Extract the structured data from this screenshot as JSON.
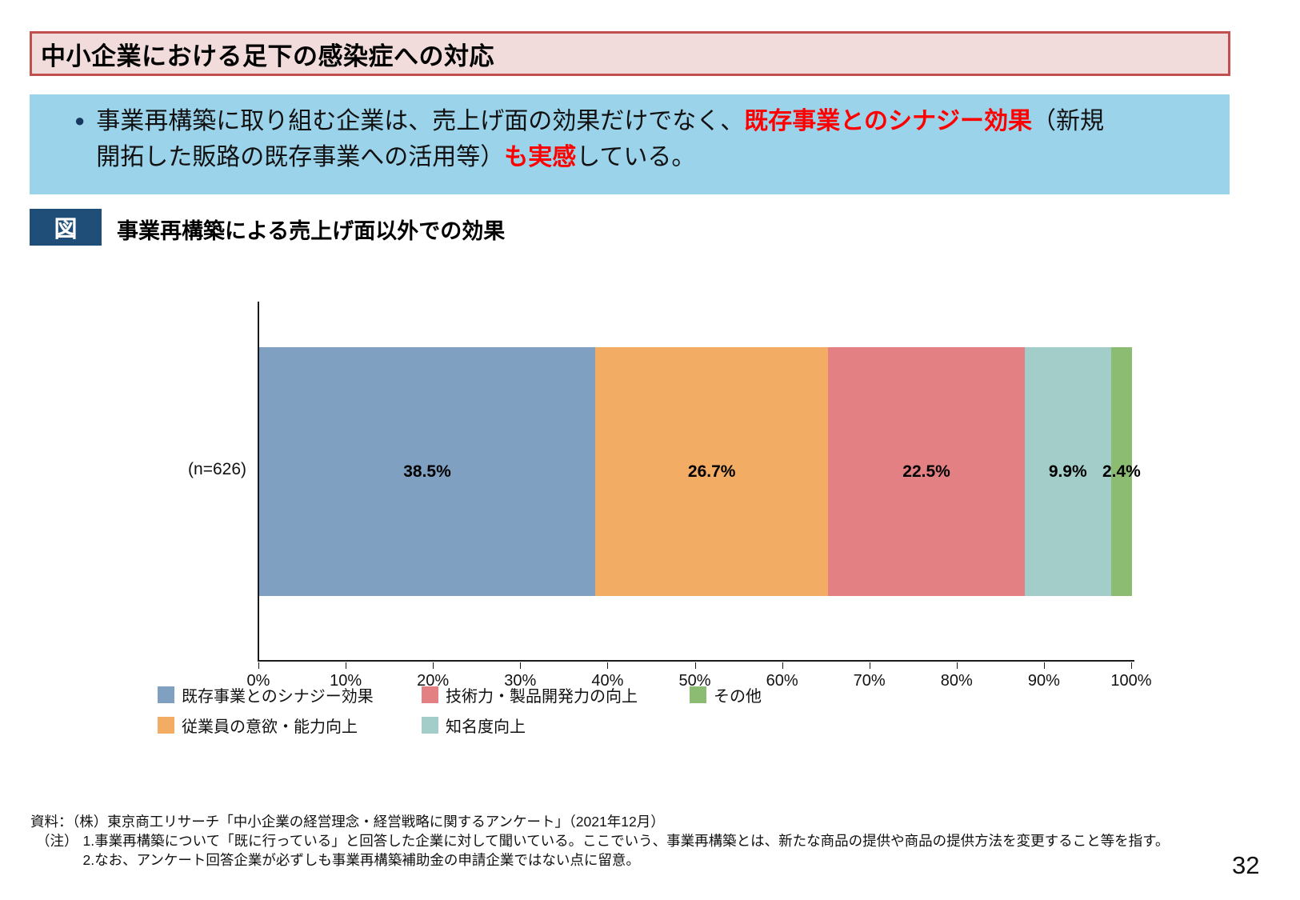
{
  "page": {
    "title": "中小企業における足下の感染症への対応",
    "number": "32"
  },
  "colors": {
    "title_bar_bg": "#F2DCDB",
    "title_bar_border": "#C0504D",
    "summary_box_bg": "#9BD3EA",
    "highlight_red": "#FF0000",
    "figure_badge_bg": "#1F4E79",
    "bullet": "#17375E"
  },
  "summary": {
    "bullet": "●",
    "line1_seg1": "事業再構築に取り組む企業は、売上げ面の効果だけでなく、",
    "line1_seg2_red": "既存事業とのシナジー効果",
    "line1_seg3": "（新規",
    "line2_seg1": "開拓した販路の既存事業への活用等）",
    "line2_seg2_red": "も実感",
    "line2_seg3": "している。"
  },
  "figure": {
    "badge": "図",
    "title": "事業再構築による売上げ面以外での効果"
  },
  "chart_data": {
    "type": "bar",
    "orientation": "horizontal",
    "stacked": true,
    "title": "事業再構築による売上げ面以外での効果",
    "categories": [
      "(n=626)"
    ],
    "n_label": "(n=626)",
    "series": [
      {
        "name": "既存事業とのシナジー効果",
        "values": [
          38.5
        ],
        "label": "38.5%",
        "color": "#7FA0C1"
      },
      {
        "name": "従業員の意欲・能力向上",
        "values": [
          26.7
        ],
        "label": "26.7%",
        "color": "#F2AC64"
      },
      {
        "name": "技術力・製品開発力の向上",
        "values": [
          22.5
        ],
        "label": "22.5%",
        "color": "#E28083"
      },
      {
        "name": "知名度向上",
        "values": [
          9.9
        ],
        "label": "9.9%",
        "color": "#A2CDC9"
      },
      {
        "name": "その他",
        "values": [
          2.4
        ],
        "label": "2.4%",
        "color": "#8CBB72"
      }
    ],
    "x_ticks": [
      "0%",
      "10%",
      "20%",
      "30%",
      "40%",
      "50%",
      "60%",
      "70%",
      "80%",
      "90%",
      "100%"
    ],
    "xlim": [
      0,
      100
    ],
    "grid": false,
    "legend_position": "bottom"
  },
  "legend": {
    "items": [
      {
        "label": "既存事業とのシナジー効果",
        "color": "#7FA0C1",
        "col": 1,
        "row": 1
      },
      {
        "label": "従業員の意欲・能力向上",
        "color": "#F2AC64",
        "col": 1,
        "row": 2
      },
      {
        "label": "技術力・製品開発力の向上",
        "color": "#E28083",
        "col": 2,
        "row": 1
      },
      {
        "label": "知名度向上",
        "color": "#A2CDC9",
        "col": 2,
        "row": 2
      },
      {
        "label": "その他",
        "color": "#8CBB72",
        "col": 3,
        "row": 1
      }
    ]
  },
  "footer": {
    "source": "資料：（株）東京商工リサーチ「中小企業の経営理念・経営戦略に関するアンケート」（2021年12月）",
    "note_label": "（注）",
    "note1": "1.事業再構築について「既に行っている」と回答した企業に対して聞いている。ここでいう、事業再構築とは、新たな商品の提供や商品の提供方法を変更すること等を指す。",
    "note2": "2.なお、アンケート回答企業が必ずしも事業再構築補助金の申請企業ではない点に留意。"
  }
}
